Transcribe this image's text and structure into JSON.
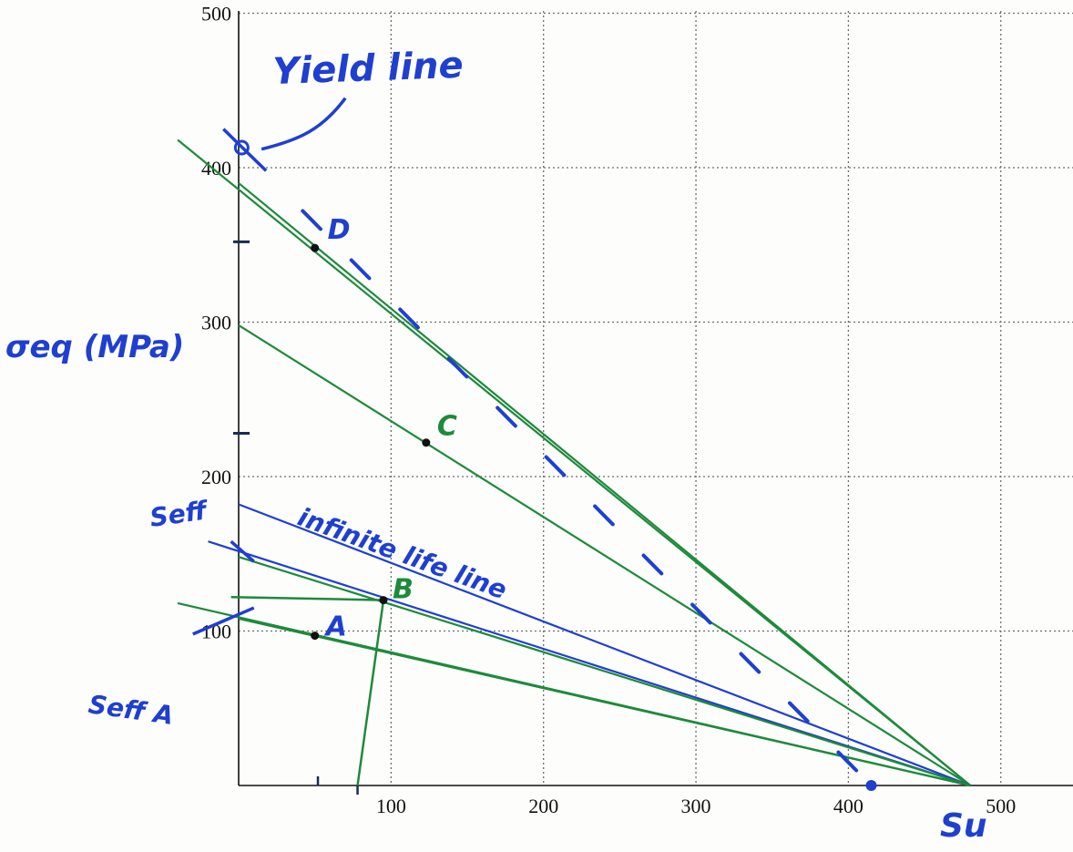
{
  "chart_data": {
    "type": "line",
    "title": "",
    "xlabel": "",
    "ylabel": "σeq (MPa)",
    "xlim": [
      0,
      550
    ],
    "ylim": [
      0,
      500
    ],
    "grid": true,
    "x_ticks": [
      "100",
      "200",
      "300",
      "400",
      "500"
    ],
    "y_ticks": [
      "100",
      "200",
      "300",
      "400",
      "500"
    ],
    "lines": [
      {
        "color": "#1d8a3c",
        "x": [
          -40,
          480
        ],
        "y": [
          418,
          0
        ]
      },
      {
        "color": "#1d8a3c",
        "x": [
          0,
          480
        ],
        "y": [
          390,
          0
        ]
      },
      {
        "color": "#1d8a3c",
        "x": [
          0,
          480
        ],
        "y": [
          298,
          0
        ]
      },
      {
        "color": "#1f3fd0",
        "x": [
          0,
          480
        ],
        "y": [
          182,
          0
        ]
      },
      {
        "color": "#1f3fd0",
        "x": [
          -20,
          480
        ],
        "y": [
          158,
          0
        ]
      },
      {
        "color": "#1d8a3c",
        "x": [
          0,
          480
        ],
        "y": [
          148,
          0
        ]
      },
      {
        "color": "#1d8a3c",
        "x": [
          -40,
          480
        ],
        "y": [
          118,
          0
        ]
      },
      {
        "color": "#1d8a3c",
        "x": [
          0,
          480
        ],
        "y": [
          108,
          0
        ]
      }
    ],
    "points": [
      {
        "label": "A",
        "x": 50,
        "y": 97
      },
      {
        "label": "B",
        "x": 95,
        "y": 120
      },
      {
        "label": "C",
        "x": 123,
        "y": 222
      },
      {
        "label": "D",
        "x": 50,
        "y": 348
      }
    ],
    "annotations": [
      {
        "text": "Yield line",
        "color": "#1f3fd0"
      },
      {
        "text": "Su",
        "color": "#1f3fd0"
      },
      {
        "text": "Seff",
        "color": "#1f3fd0"
      },
      {
        "text": "Seff A",
        "color": "#1f3fd0"
      },
      {
        "text": "infinite life line",
        "color": "#1f3fd0"
      }
    ]
  }
}
